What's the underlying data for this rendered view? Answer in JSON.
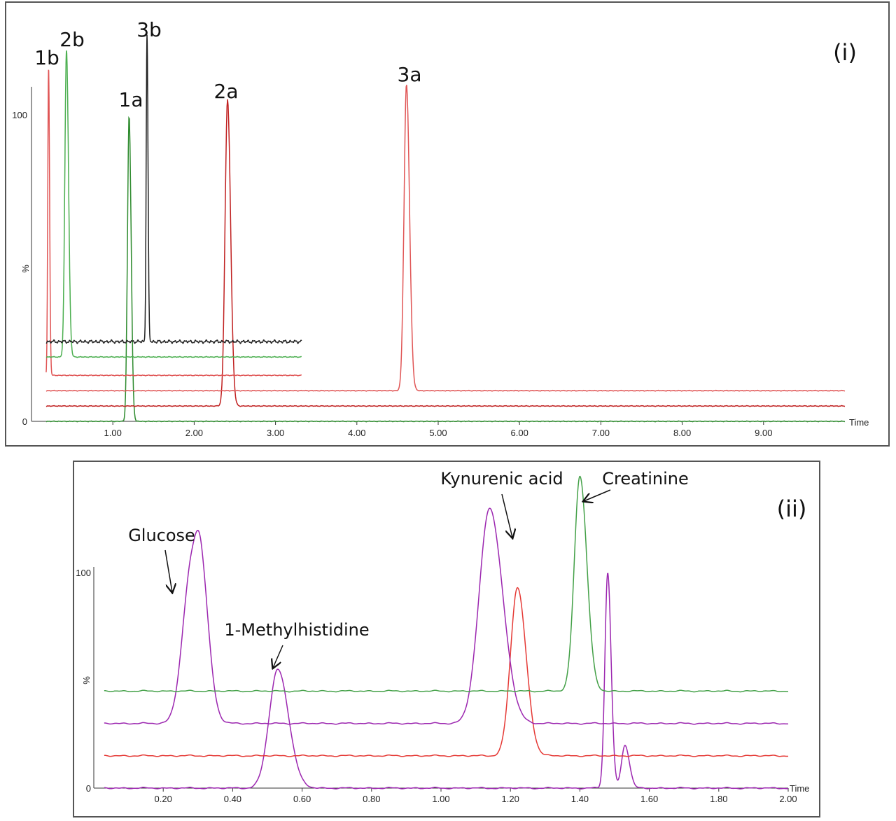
{
  "chart_data": [
    {
      "type": "line",
      "panel_label": "(i)",
      "xlabel": "Time",
      "ylabel": "%",
      "y_ticks": [
        "0",
        "100"
      ],
      "x_ticks": [
        "1.00",
        "2.00",
        "3.00",
        "4.00",
        "5.00",
        "6.00",
        "7.00",
        "8.00",
        "9.00"
      ],
      "xlim": [
        0,
        10
      ],
      "peak_labels": [
        "1b",
        "2b",
        "3b",
        "1a",
        "2a",
        "3a"
      ],
      "series": [
        {
          "color": "#2e8b2e",
          "baseline": 0,
          "x_end": 10.0,
          "peaks": [
            {
              "x": 1.2,
              "height": 100,
              "width": 0.02
            }
          ]
        },
        {
          "color": "#c02020",
          "baseline": 5,
          "x_end": 10.0,
          "peaks": [
            {
              "x": 2.41,
              "height": 100,
              "width": 0.03
            }
          ]
        },
        {
          "color": "#e05555",
          "baseline": 10,
          "x_end": 10.0,
          "peaks": [
            {
              "x": 4.61,
              "height": 100,
              "width": 0.03
            }
          ]
        },
        {
          "color": "#e05555",
          "baseline": 15,
          "x_end": 3.32,
          "peaks": [
            {
              "x": 0.21,
              "height": 100,
              "width": 0.01
            }
          ]
        },
        {
          "color": "#4caf50",
          "baseline": 21,
          "x_end": 3.32,
          "peaks": [
            {
              "x": 0.43,
              "height": 100,
              "width": 0.02
            }
          ]
        },
        {
          "color": "#222222",
          "baseline": 26,
          "x_end": 3.32,
          "peaks": [
            {
              "x": 1.42,
              "height": 100,
              "width": 0.01
            }
          ]
        }
      ]
    },
    {
      "type": "line",
      "panel_label": "(ii)",
      "xlabel": "Time",
      "ylabel": "%",
      "y_ticks": [
        "0",
        "100"
      ],
      "x_ticks": [
        "0.20",
        "0.40",
        "0.60",
        "0.80",
        "1.00",
        "1.20",
        "1.40",
        "1.60",
        "1.80",
        "2.00"
      ],
      "xlim": [
        0,
        2.0
      ],
      "annotations": [
        "Glucose",
        "1-Methylhistidine",
        "Kynurenic acid",
        "Creatinine"
      ],
      "series": [
        {
          "color": "#9c27b0",
          "baseline": 0,
          "x_end": 2.0,
          "peaks": [
            {
              "x": 0.53,
              "height": 55,
              "width": 0.025
            },
            {
              "x": 1.48,
              "height": 100,
              "width": 0.008
            },
            {
              "x": 1.53,
              "height": 20,
              "width": 0.01
            }
          ]
        },
        {
          "color": "#e53935",
          "baseline": 15,
          "x_end": 2.0,
          "peaks": [
            {
              "x": 1.22,
              "height": 78,
              "width": 0.02
            }
          ]
        },
        {
          "color": "#9c27b0",
          "baseline": 30,
          "x_end": 2.0,
          "peaks": [
            {
              "x": 0.28,
              "height": 68,
              "width": 0.025
            },
            {
              "x": 0.31,
              "height": 40,
              "width": 0.018
            },
            {
              "x": 1.14,
              "height": 100,
              "width": 0.03
            }
          ]
        },
        {
          "color": "#43a047",
          "baseline": 45,
          "x_end": 2.0,
          "peaks": [
            {
              "x": 1.4,
              "height": 100,
              "width": 0.016
            }
          ]
        }
      ]
    }
  ]
}
